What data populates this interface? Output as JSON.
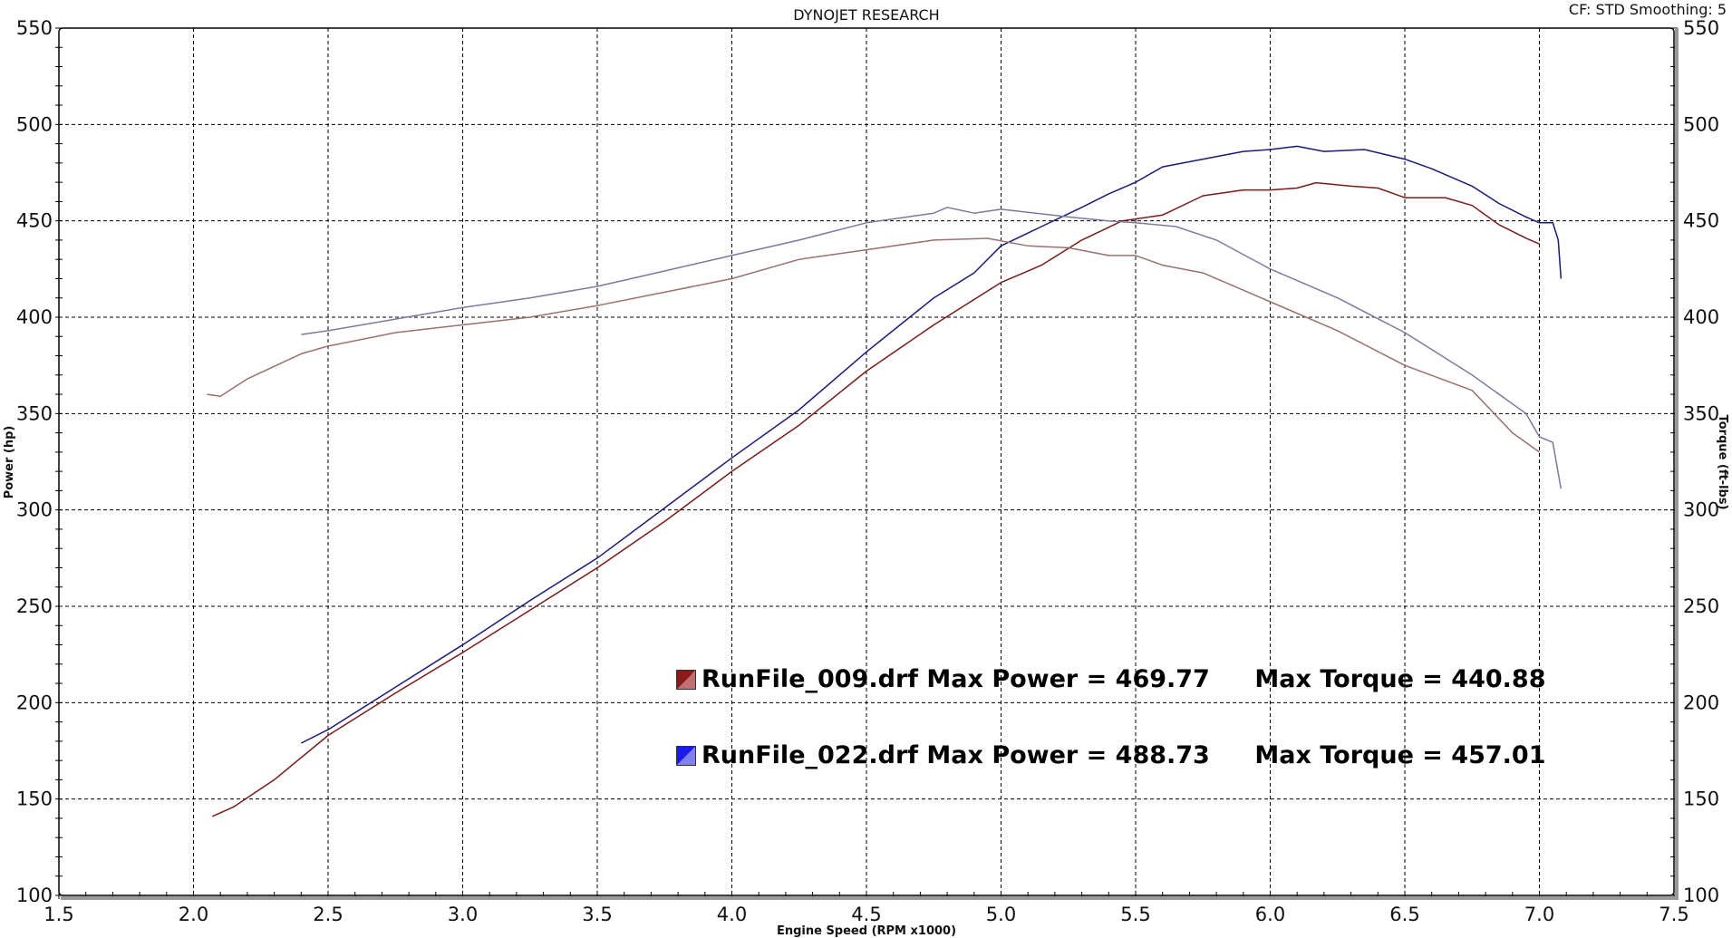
{
  "chart_data": {
    "type": "line",
    "title": "DYNOJET RESEARCH",
    "subtitle": "CF: STD  Smoothing: 5",
    "xlabel": "Engine Speed (RPM x1000)",
    "ylabel": "Power (hp)",
    "y2label": "Torque (ft-lbs)",
    "xlim": [
      1.5,
      7.5
    ],
    "ylim": [
      100,
      550
    ],
    "y2lim": [
      100,
      550
    ],
    "xticks": [
      "1.5",
      "2.0",
      "2.5",
      "3.0",
      "3.5",
      "4.0",
      "4.5",
      "5.0",
      "5.5",
      "6.0",
      "6.5",
      "7.0",
      "7.5"
    ],
    "yticks": [
      "100",
      "150",
      "200",
      "250",
      "300",
      "350",
      "400",
      "450",
      "500",
      "550"
    ],
    "grid": true,
    "series": [
      {
        "name": "RunFile_009.drf Power",
        "color": "#7a1a1a",
        "axis": "left",
        "x": [
          2.07,
          2.15,
          2.3,
          2.5,
          2.75,
          3.0,
          3.25,
          3.5,
          3.75,
          4.0,
          4.25,
          4.5,
          4.75,
          5.0,
          5.15,
          5.3,
          5.45,
          5.6,
          5.75,
          5.9,
          6.0,
          6.1,
          6.17,
          6.3,
          6.4,
          6.5,
          6.65,
          6.75,
          6.85,
          6.95,
          7.0
        ],
        "y": [
          141,
          146,
          160,
          183,
          205,
          226,
          248,
          270,
          294,
          320,
          344,
          372,
          396,
          418,
          427,
          440,
          450,
          453,
          463,
          466,
          466,
          467,
          469.8,
          468,
          467,
          462,
          462,
          458,
          448,
          441,
          438
        ]
      },
      {
        "name": "RunFile_022.drf Power",
        "color": "#1a1a7a",
        "axis": "left",
        "x": [
          2.4,
          2.5,
          2.75,
          3.0,
          3.25,
          3.5,
          3.75,
          4.0,
          4.25,
          4.5,
          4.75,
          4.9,
          5.0,
          5.15,
          5.3,
          5.4,
          5.5,
          5.6,
          5.75,
          5.9,
          6.0,
          6.1,
          6.2,
          6.35,
          6.5,
          6.6,
          6.75,
          6.85,
          6.95,
          7.0,
          7.05,
          7.07,
          7.08
        ],
        "y": [
          179,
          186,
          208,
          230,
          253,
          275,
          301,
          327,
          352,
          382,
          410,
          423,
          437,
          447,
          457,
          464,
          470,
          478,
          482,
          486,
          487,
          488.7,
          486,
          487,
          482,
          477,
          468,
          459,
          452,
          449,
          449,
          440,
          420
        ]
      },
      {
        "name": "RunFile_009.drf Torque",
        "color": "#9a7070",
        "axis": "right",
        "x": [
          2.05,
          2.1,
          2.2,
          2.4,
          2.5,
          2.75,
          3.0,
          3.25,
          3.5,
          3.75,
          4.0,
          4.25,
          4.5,
          4.75,
          4.95,
          5.1,
          5.25,
          5.4,
          5.5,
          5.6,
          5.75,
          6.0,
          6.25,
          6.5,
          6.75,
          6.9,
          7.0
        ],
        "y": [
          360,
          359,
          368,
          381,
          385,
          392,
          396,
          400,
          406,
          413,
          420,
          430,
          435,
          440,
          440.9,
          437,
          436,
          432,
          432,
          427,
          423,
          408,
          393,
          375,
          362,
          340,
          330
        ]
      },
      {
        "name": "RunFile_022.drf Torque",
        "color": "#7a7aa0",
        "axis": "right",
        "x": [
          2.4,
          2.5,
          2.75,
          3.0,
          3.25,
          3.5,
          3.75,
          4.0,
          4.25,
          4.5,
          4.75,
          4.8,
          4.9,
          5.0,
          5.25,
          5.4,
          5.5,
          5.65,
          5.8,
          6.0,
          6.25,
          6.5,
          6.75,
          6.95,
          7.0,
          7.05,
          7.08
        ],
        "y": [
          391,
          393,
          399,
          405,
          410,
          416,
          424,
          432,
          440,
          449,
          454,
          457,
          454,
          456,
          452,
          450,
          449,
          447,
          440,
          425,
          410,
          392,
          370,
          350,
          338,
          335,
          311
        ]
      }
    ],
    "legend": {
      "placement": "center-right",
      "entries": [
        {
          "file": "RunFile_009.drf",
          "power": "Max Power = 469.77",
          "torque": "Max Torque = 440.88",
          "color": "#8b1a1a"
        },
        {
          "file": "RunFile_022.drf",
          "power": "Max Power = 488.73",
          "torque": "Max Torque = 457.01",
          "color": "#1a1aee"
        }
      ]
    }
  }
}
